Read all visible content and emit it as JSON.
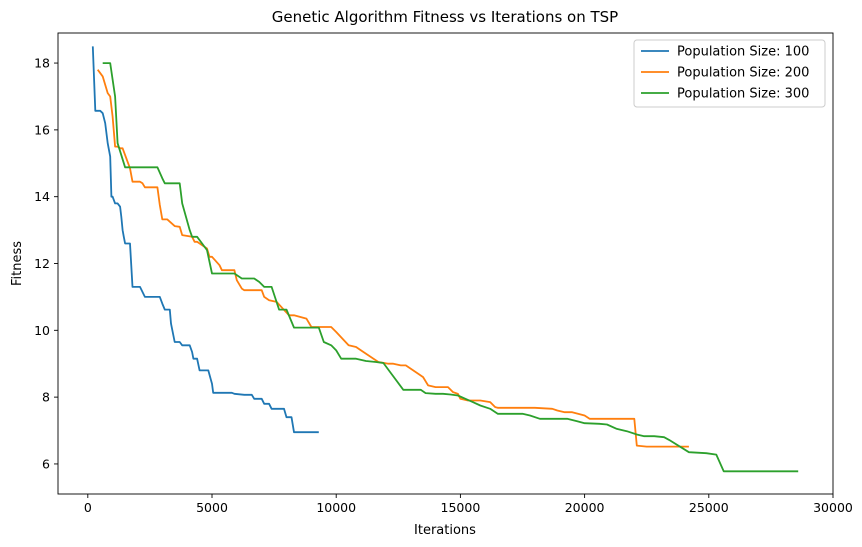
{
  "chart_data": {
    "type": "line",
    "title": "Genetic Algorithm Fitness vs Iterations on TSP",
    "xlabel": "Iterations",
    "ylabel": "Fitness",
    "xlim": [
      -1200,
      30000
    ],
    "ylim": [
      5.1,
      18.9
    ],
    "xticks": [
      0,
      5000,
      10000,
      15000,
      20000,
      25000,
      30000
    ],
    "yticks": [
      6,
      8,
      10,
      12,
      14,
      16,
      18
    ],
    "grid": false,
    "legend_position": "top-right",
    "series": [
      {
        "name": "Population Size: 100",
        "color": "#1f77b4",
        "x": [
          200,
          300,
          500,
          600,
          700,
          800,
          900,
          950,
          1000,
          1100,
          1200,
          1300,
          1350,
          1400,
          1450,
          1500,
          1550,
          1600,
          1700,
          1800,
          1850,
          1900,
          2100,
          2300,
          2400,
          2600,
          2900,
          3000,
          3100,
          3200,
          3300,
          3350,
          3500,
          3700,
          3800,
          4100,
          4200,
          4250,
          4400,
          4500,
          4550,
          4700,
          4800,
          4850,
          5000,
          5050,
          5200,
          5800,
          5900,
          6300,
          6600,
          6700,
          7000,
          7100,
          7300,
          7400,
          7900,
          8000,
          8100,
          8200,
          8300,
          9300
        ],
        "y": [
          18.5,
          16.57,
          16.57,
          16.5,
          16.2,
          15.6,
          15.2,
          14.0,
          14.0,
          13.8,
          13.8,
          13.7,
          13.4,
          13.0,
          12.8,
          12.6,
          12.6,
          12.6,
          12.6,
          11.3,
          11.3,
          11.3,
          11.3,
          11.0,
          11.0,
          11.0,
          11.0,
          10.8,
          10.62,
          10.62,
          10.62,
          10.2,
          9.65,
          9.65,
          9.55,
          9.55,
          9.35,
          9.15,
          9.15,
          8.8,
          8.8,
          8.8,
          8.8,
          8.8,
          8.4,
          8.13,
          8.13,
          8.13,
          8.1,
          8.07,
          8.07,
          7.95,
          7.95,
          7.8,
          7.8,
          7.65,
          7.65,
          7.4,
          7.4,
          7.4,
          6.95,
          6.95
        ]
      },
      {
        "name": "Population Size: 200",
        "color": "#ff7f0e",
        "x": [
          400,
          600,
          700,
          800,
          900,
          1000,
          1100,
          1200,
          1300,
          1400,
          1700,
          1800,
          2100,
          2200,
          2300,
          2800,
          2900,
          3000,
          3200,
          3500,
          3700,
          3800,
          4200,
          4300,
          4400,
          4800,
          4900,
          5000,
          5300,
          5400,
          5900,
          6000,
          6200,
          6300,
          7000,
          7100,
          7300,
          7600,
          8100,
          8300,
          8800,
          9000,
          9800,
          10000,
          10500,
          10800,
          11000,
          11500,
          11700,
          12100,
          12300,
          12600,
          12800,
          13300,
          13500,
          13700,
          14000,
          14500,
          14700,
          14900,
          15000,
          15300,
          15800,
          16200,
          16400,
          16500,
          18000,
          18700,
          18900,
          19200,
          19500,
          20000,
          20200,
          20500,
          21500,
          22000,
          22100,
          22500,
          23000,
          24200
        ],
        "y": [
          17.8,
          17.6,
          17.35,
          17.1,
          17.0,
          16.4,
          15.5,
          15.5,
          15.45,
          15.45,
          14.85,
          14.45,
          14.45,
          14.4,
          14.28,
          14.28,
          13.75,
          13.32,
          13.32,
          13.12,
          13.1,
          12.85,
          12.8,
          12.65,
          12.65,
          12.45,
          12.2,
          12.2,
          11.95,
          11.8,
          11.8,
          11.5,
          11.25,
          11.2,
          11.2,
          11.0,
          10.9,
          10.85,
          10.45,
          10.45,
          10.35,
          10.1,
          10.1,
          9.95,
          9.55,
          9.5,
          9.4,
          9.15,
          9.05,
          9.0,
          9.0,
          8.95,
          8.95,
          8.7,
          8.6,
          8.35,
          8.3,
          8.3,
          8.15,
          8.1,
          7.95,
          7.9,
          7.9,
          7.85,
          7.7,
          7.68,
          7.68,
          7.65,
          7.6,
          7.55,
          7.55,
          7.45,
          7.35,
          7.35,
          7.35,
          7.35,
          6.55,
          6.52,
          6.52,
          6.52
        ]
      },
      {
        "name": "Population Size: 300",
        "color": "#2ca02c",
        "x": [
          600,
          900,
          1100,
          1200,
          1500,
          1800,
          2200,
          2800,
          3000,
          3100,
          3300,
          3700,
          3800,
          4100,
          4200,
          4400,
          4600,
          4800,
          5000,
          5400,
          5900,
          6200,
          6700,
          6900,
          7100,
          7400,
          7700,
          8000,
          8300,
          8600,
          9000,
          9300,
          9500,
          9800,
          10000,
          10200,
          10500,
          10800,
          11200,
          11600,
          11900,
          12200,
          12700,
          12900,
          13400,
          13600,
          14000,
          14300,
          14600,
          14900,
          15200,
          15500,
          15800,
          16200,
          16500,
          17000,
          17500,
          17800,
          18200,
          18700,
          19300,
          19700,
          20000,
          20600,
          20900,
          21300,
          21700,
          22100,
          22400,
          22800,
          23200,
          23400,
          24200,
          24900,
          25300,
          25600,
          28600
        ],
        "y": [
          18.0,
          18.0,
          17.0,
          15.6,
          14.88,
          14.88,
          14.88,
          14.88,
          14.55,
          14.4,
          14.4,
          14.4,
          13.8,
          13.0,
          12.8,
          12.8,
          12.6,
          12.4,
          11.7,
          11.7,
          11.7,
          11.55,
          11.55,
          11.45,
          11.3,
          11.3,
          10.62,
          10.62,
          10.08,
          10.08,
          10.08,
          10.08,
          9.65,
          9.55,
          9.4,
          9.15,
          9.15,
          9.15,
          9.08,
          9.05,
          9.02,
          8.72,
          8.22,
          8.22,
          8.22,
          8.12,
          8.1,
          8.1,
          8.08,
          8.05,
          7.95,
          7.85,
          7.75,
          7.65,
          7.5,
          7.5,
          7.5,
          7.45,
          7.35,
          7.35,
          7.35,
          7.28,
          7.22,
          7.2,
          7.18,
          7.05,
          6.98,
          6.88,
          6.83,
          6.83,
          6.8,
          6.72,
          6.35,
          6.32,
          6.28,
          5.78,
          5.78
        ]
      }
    ]
  }
}
